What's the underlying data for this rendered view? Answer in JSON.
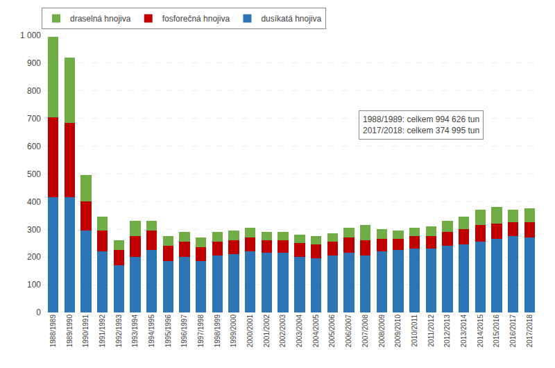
{
  "chart_data": {
    "type": "bar",
    "stacked": true,
    "categories": [
      "1988/1989",
      "1989/1990",
      "1990/1991",
      "1991/1992",
      "1992/1993",
      "1993/1994",
      "1994/1995",
      "1995/1996",
      "1996/1997",
      "1997/1998",
      "1998/1999",
      "1999/2000",
      "2000/2001",
      "2001/2002",
      "2002/2003",
      "2003/2004",
      "2004/2005",
      "2005/2006",
      "2006/2007",
      "2007/2008",
      "2008/2009",
      "2009/2010",
      "2010/2011",
      "2011/2012",
      "2012/2013",
      "2013/2014",
      "2014/2015",
      "2015/2016",
      "2016/2017",
      "2017/2018"
    ],
    "series": [
      {
        "name": "dusíkatá hnojiva",
        "color": "#2E75B6",
        "values": [
          415,
          415,
          295,
          220,
          170,
          200,
          225,
          185,
          200,
          185,
          205,
          210,
          220,
          215,
          215,
          200,
          195,
          205,
          215,
          205,
          220,
          225,
          230,
          230,
          240,
          245,
          255,
          265,
          275,
          270
        ]
      },
      {
        "name": "fosforečná hnojiva",
        "color": "#C00000",
        "values": [
          290,
          270,
          105,
          75,
          55,
          75,
          70,
          55,
          55,
          50,
          50,
          50,
          50,
          45,
          45,
          50,
          50,
          50,
          55,
          55,
          45,
          40,
          45,
          45,
          50,
          55,
          60,
          55,
          50,
          55
        ]
      },
      {
        "name": "draselná hnojiva",
        "color": "#70AD47",
        "values": [
          290,
          235,
          95,
          50,
          35,
          55,
          35,
          35,
          35,
          35,
          35,
          35,
          35,
          30,
          30,
          30,
          30,
          30,
          35,
          55,
          35,
          30,
          30,
          35,
          40,
          45,
          55,
          60,
          45,
          50
        ]
      }
    ],
    "annotations": [
      "1988/1989: celkem 994 626 tun\n2017/2018: celkem 374 995 tun"
    ],
    "ylim": [
      0,
      1000
    ],
    "yticks": [
      0,
      100,
      200,
      300,
      400,
      500,
      600,
      700,
      800,
      900,
      {
        "value": 1000,
        "label": "1 000"
      }
    ],
    "grid": true,
    "legend": "upper left"
  }
}
